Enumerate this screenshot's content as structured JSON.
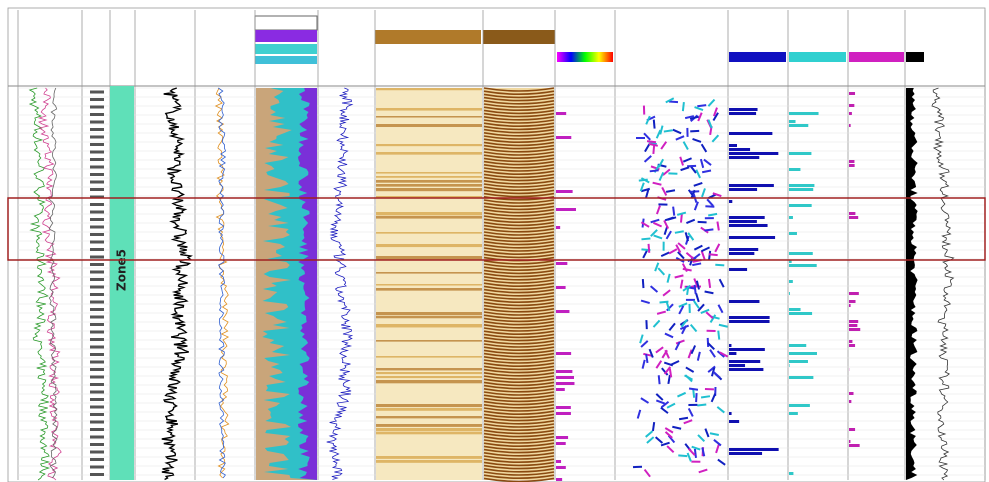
{
  "zone_label": "Zone5"
}
